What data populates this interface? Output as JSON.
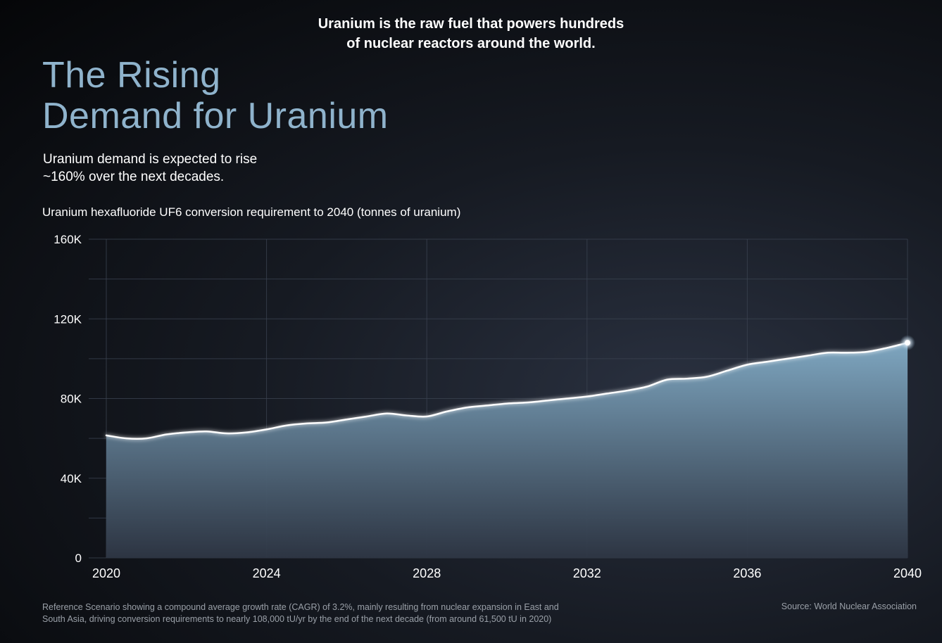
{
  "header": {
    "intro_line1": "Uranium is the raw fuel that powers hundreds",
    "intro_line2": "of nuclear reactors around the world.",
    "title_line1": "The Rising",
    "title_line2": "Demand for Uranium",
    "subtitle_line1": "Uranium demand is expected to rise",
    "subtitle_line2": "~160% over the next decades."
  },
  "chart_caption": "Uranium hexafluoride UF6 conversion requirement to 2040 (tonnes of uranium)",
  "footer": {
    "note_line1": "Reference Scenario showing a compound average growth rate (CAGR) of 3.2%, mainly resulting from nuclear expansion in East and",
    "note_line2": "South Asia, driving conversion requirements to nearly 108,000 tU/yr by the end of the next decade (from around 61,500 tU in 2020)",
    "source": "Source: World Nuclear Association"
  },
  "colors": {
    "title": "#8fb3cc",
    "area_top": "#7ea6c0",
    "area_bottom": "#2e3644",
    "line": "#ffffff",
    "grid": "#3a4250"
  },
  "chart_data": {
    "type": "area",
    "title": "Uranium hexafluoride UF6 conversion requirement to 2040 (tonnes of uranium)",
    "xlabel": "",
    "ylabel": "",
    "xlim": [
      2020,
      2040
    ],
    "ylim": [
      0,
      160000
    ],
    "x_ticks": [
      2020,
      2024,
      2028,
      2032,
      2036,
      2040
    ],
    "x_tick_labels": [
      "2020",
      "2024",
      "2028",
      "2032",
      "2036",
      "2040"
    ],
    "y_ticks": [
      0,
      40000,
      80000,
      120000,
      160000
    ],
    "y_tick_labels": [
      "0",
      "40K",
      "80K",
      "120K",
      "160K"
    ],
    "grid": true,
    "series": [
      {
        "name": "UF6 conversion requirement",
        "x": [
          2020,
          2020.5,
          2021,
          2021.5,
          2022,
          2022.5,
          2023,
          2023.5,
          2024,
          2024.5,
          2025,
          2025.5,
          2026,
          2026.5,
          2027,
          2027.5,
          2028,
          2028.5,
          2029,
          2029.5,
          2030,
          2030.5,
          2031,
          2031.5,
          2032,
          2032.5,
          2033,
          2033.5,
          2034,
          2034.5,
          2035,
          2035.5,
          2036,
          2036.5,
          2037,
          2037.5,
          2038,
          2038.5,
          2039,
          2039.5,
          2040
        ],
        "values": [
          61500,
          60000,
          60000,
          62000,
          63000,
          63500,
          62500,
          63000,
          64500,
          66500,
          67500,
          68000,
          69500,
          71000,
          72500,
          71500,
          71000,
          73500,
          75500,
          76500,
          77500,
          78000,
          79000,
          80000,
          81000,
          82500,
          84000,
          86000,
          89500,
          90000,
          91000,
          94000,
          97000,
          98500,
          100000,
          101500,
          103000,
          103000,
          103500,
          105500,
          108000
        ]
      }
    ],
    "highlight_point": {
      "x": 2040,
      "y": 108000
    }
  }
}
